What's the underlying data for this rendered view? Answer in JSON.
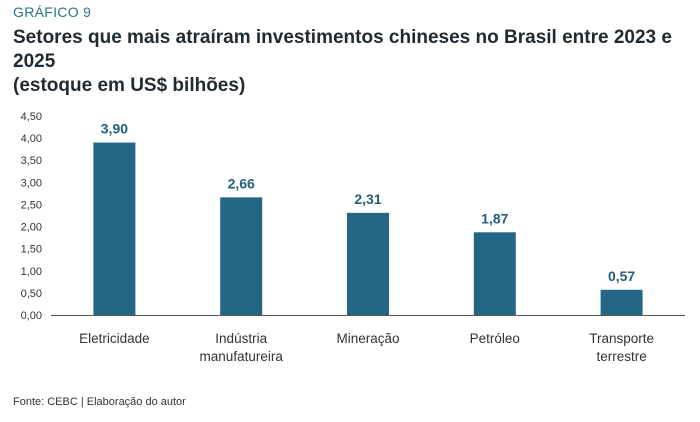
{
  "header": {
    "label": "GRÁFICO 9",
    "title_line1": "Setores que mais atraíram investimentos chineses no Brasil entre 2023 e 2025",
    "title_line2": "(estoque em US$ bilhões)"
  },
  "footer": {
    "source": "Fonte: CEBC | Elaboração do autor"
  },
  "colors": {
    "bar": "#236784",
    "value_label": "#235f7a",
    "axis": "#555555"
  },
  "chart_data": {
    "type": "bar",
    "categories": [
      [
        "Eletricidade"
      ],
      [
        "Indústria",
        "manufatureira"
      ],
      [
        "Mineração"
      ],
      [
        "Petróleo"
      ],
      [
        "Transporte",
        "terrestre"
      ]
    ],
    "values": [
      3.9,
      2.66,
      2.31,
      1.87,
      0.57
    ],
    "value_labels": [
      "3,90",
      "2,66",
      "2,31",
      "1,87",
      "0,57"
    ],
    "yticks": [
      "0,00",
      "0,50",
      "1,00",
      "1,50",
      "2,00",
      "2,50",
      "3,00",
      "3,50",
      "4,00",
      "4,50"
    ],
    "ylim": [
      0,
      4.5
    ],
    "grid": false,
    "legend": "none"
  }
}
